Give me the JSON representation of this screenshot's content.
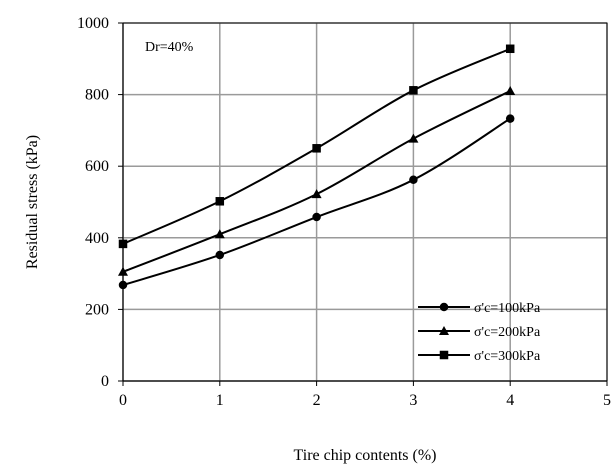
{
  "chart_data": {
    "type": "line",
    "title": "",
    "xlabel": "Tire chip contents (%)",
    "ylabel": "Residual stress  (kPa)",
    "xlim": [
      0,
      5
    ],
    "ylim": [
      0,
      1000
    ],
    "xticks": [
      "0",
      "1",
      "2",
      "3",
      "4",
      "5"
    ],
    "yticks": [
      "0",
      "200",
      "400",
      "600",
      "800",
      "1000"
    ],
    "grid": true,
    "legend_position": "bottom-right",
    "annotation": "Dr=40%",
    "series": [
      {
        "name": "σ'c=100kPa",
        "marker": "circle",
        "x": [
          0,
          1,
          2,
          3,
          4
        ],
        "values": [
          268,
          352,
          458,
          562,
          733
        ]
      },
      {
        "name": "σ'c=200kPa",
        "marker": "triangle",
        "x": [
          0,
          1,
          2,
          3,
          4
        ],
        "values": [
          305,
          410,
          522,
          677,
          810
        ]
      },
      {
        "name": "σ'c=300kPa",
        "marker": "square",
        "x": [
          0,
          1,
          2,
          3,
          4
        ],
        "values": [
          383,
          502,
          650,
          812,
          928
        ]
      }
    ]
  }
}
